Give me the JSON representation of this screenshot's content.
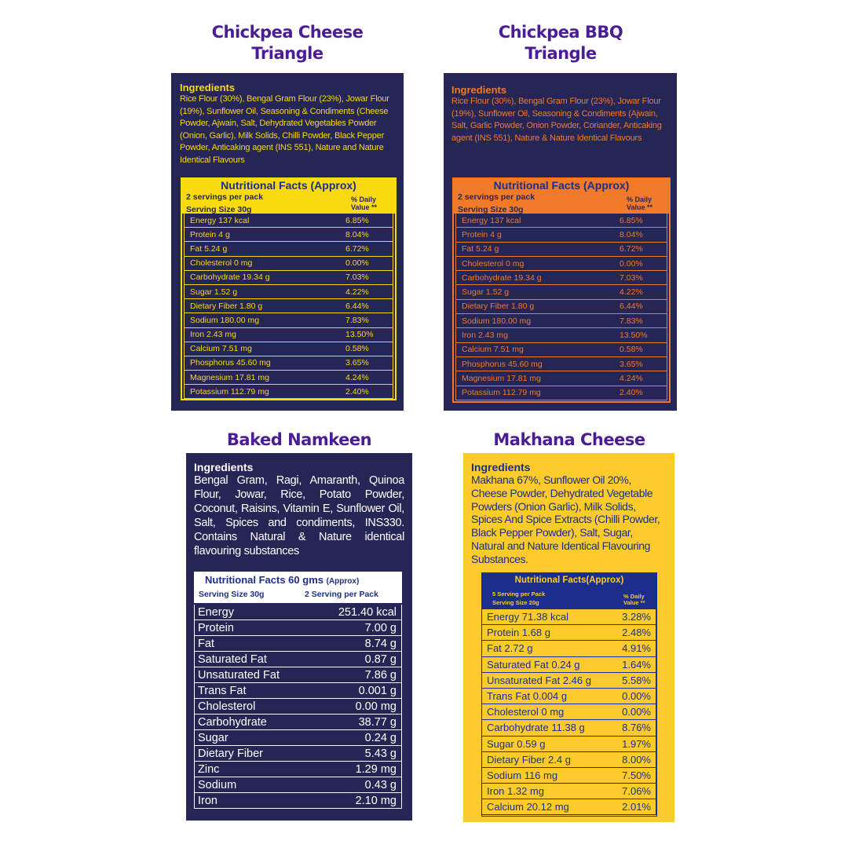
{
  "products": [
    {
      "title_lines": [
        "Chickpea Cheese",
        "Triangle"
      ],
      "ingredients_heading": "Ingredients",
      "ingredients": "Rice Flour (30%), Bengal Gram Flour (23%), Jowar Flour (19%), Sunflower Oil, Seasoning & Condiments (Cheese Powder, Ajwain, Salt, Dehydrated Vegetables Powder (Onion, Garlic), Milk Solids, Chilli Powder, Black Pepper Powder, Anticaking agent (INS 551), Nature and Nature Identical Flavours",
      "table_title": "Nutritional Facts (Approx)",
      "servings": "2 servings per pack",
      "serving_size": "Serving Size 30g",
      "dv_header": "% Daily Value **",
      "accent": "#f9d90f",
      "rows": [
        [
          "Energy  137 kcal",
          "6.85%"
        ],
        [
          "Protein 4 g",
          "8.04%"
        ],
        [
          "Fat 5.24 g",
          "6.72%"
        ],
        [
          "Cholesterol 0 mg",
          "0.00%"
        ],
        [
          "Carbohydrate 19.34 g",
          "7.03%"
        ],
        [
          "Sugar 1.52 g",
          "4.22%"
        ],
        [
          "Dietary Fiber 1.80 g",
          "6.44%"
        ],
        [
          "Sodium 180.00 mg",
          "7.83%"
        ],
        [
          "Iron 2.43 mg",
          "13.50%"
        ],
        [
          "Calcium 7.51 mg",
          "0.58%"
        ],
        [
          "Phosphorus 45.60 mg",
          "3.65%"
        ],
        [
          "Magnesium 17.81 mg",
          "4.24%"
        ],
        [
          "Potassium 112.79 mg",
          "2.40%"
        ]
      ]
    },
    {
      "title_lines": [
        "Chickpea BBQ",
        "Triangle"
      ],
      "ingredients_heading": "Ingredients",
      "ingredients": "Rice Flour (30%), Bengal Gram Flour (23%), Jowar Flour (19%), Sunflower Oil, Seasoning & Condiments (Ajwain, Salt, Garlic Powder, Onion Powder, Coriander, Anticaking agent (INS 551), Nature & Nature Identical Flavours",
      "table_title": "Nutritional Facts (Approx)",
      "servings": "2 servings per pack",
      "serving_size": "Serving Size 30g",
      "dv_header": "% Daily Value **",
      "accent": "#f07a2a",
      "rows": [
        [
          "Energy  137 kcal",
          "6.85%"
        ],
        [
          "Protein 4 g",
          "8.04%"
        ],
        [
          "Fat 5.24 g",
          "6.72%"
        ],
        [
          "Cholesterol 0 mg",
          "0.00%"
        ],
        [
          "Carbohydrate 19.34 g",
          "7.03%"
        ],
        [
          "Sugar 1.52 g",
          "4.22%"
        ],
        [
          "Dietary Fiber 1.80 g",
          "6.44%"
        ],
        [
          "Sodium 180.00 mg",
          "7.83%"
        ],
        [
          "Iron 2.43 mg",
          "13.50%"
        ],
        [
          "Calcium 7.51 mg",
          "0.58%"
        ],
        [
          "Phosphorus 45.60 mg",
          "3.65%"
        ],
        [
          "Magnesium 17.81 mg",
          "4.24%"
        ],
        [
          "Potassium 112.79 mg",
          "2.40%"
        ]
      ]
    },
    {
      "title_lines": [
        "Baked Namkeen"
      ],
      "ingredients_heading": "Ingredients",
      "ingredients": "Bengal Gram, Ragi, Amaranth, Quinoa Flour, Jowar, Rice, Potato Powder, Coconut, Raisins, Vitamin E, Sunflower Oil, Salt, Spices and condiments, INS330. Contains Natural & Nature identical flavouring substances",
      "table_title": "Nutritional Facts 60 gms",
      "table_title_suffix": "(Approx)",
      "serving_size": "Serving Size 30g",
      "servings": "2 Serving per Pack",
      "rows": [
        [
          "Energy",
          "251.40 kcal"
        ],
        [
          "Protein",
          "7.00 g"
        ],
        [
          "Fat",
          "8.74 g"
        ],
        [
          "Saturated Fat",
          "0.87 g"
        ],
        [
          "Unsaturated Fat",
          "7.86 g"
        ],
        [
          "Trans Fat",
          "0.001 g"
        ],
        [
          "Cholesterol",
          "0.00 mg"
        ],
        [
          "Carbohydrate",
          "38.77 g"
        ],
        [
          "Sugar",
          "0.24 g"
        ],
        [
          "Dietary Fiber",
          "5.43 g"
        ],
        [
          "Zinc",
          "1.29 mg"
        ],
        [
          "Sodium",
          "0.43 g"
        ],
        [
          "Iron",
          "2.10 mg"
        ]
      ]
    },
    {
      "title_lines": [
        "Makhana Cheese"
      ],
      "ingredients_heading": "Ingredients",
      "ingredients": "Makhana 67%, Sunflower Oil 20%, Cheese Powder, Dehydrated Vegetable Powders (Onion Garlic), Milk Solids, Spices And Spice Extracts (Chilli Powder, Black Pepper Powder), Salt, Sugar, Natural and Nature Identical Flavouring Substances.",
      "table_title": "Nutritional Facts(Approx)",
      "servings": "5 Serving per Pack",
      "serving_size": "Serving Size 20g",
      "dv_header": "% Daily Value **",
      "accent": "#fbcb2d",
      "rows": [
        [
          "Energy 71.38 kcal",
          "3.28%"
        ],
        [
          "Protein 1.68 g",
          "2.48%"
        ],
        [
          "Fat 2.72 g",
          "4.91%"
        ],
        [
          "Saturated Fat 0.24 g",
          "1.64%"
        ],
        [
          "Unsaturated Fat 2.46 g",
          "5.58%"
        ],
        [
          "Trans Fat 0.004 g",
          "0.00%"
        ],
        [
          "Cholesterol 0 mg",
          "0.00%"
        ],
        [
          "Carbohydrate 11.38 g",
          "8.76%"
        ],
        [
          "Sugar 0.59 g",
          "1.97%"
        ],
        [
          "Dietary Fiber 2.4 g",
          "8.00%"
        ],
        [
          "Sodium 116 mg",
          "7.50%"
        ],
        [
          "Iron 1.32 mg",
          "7.06%"
        ],
        [
          "Calcium  20.12 mg",
          "2.01%"
        ]
      ]
    }
  ]
}
